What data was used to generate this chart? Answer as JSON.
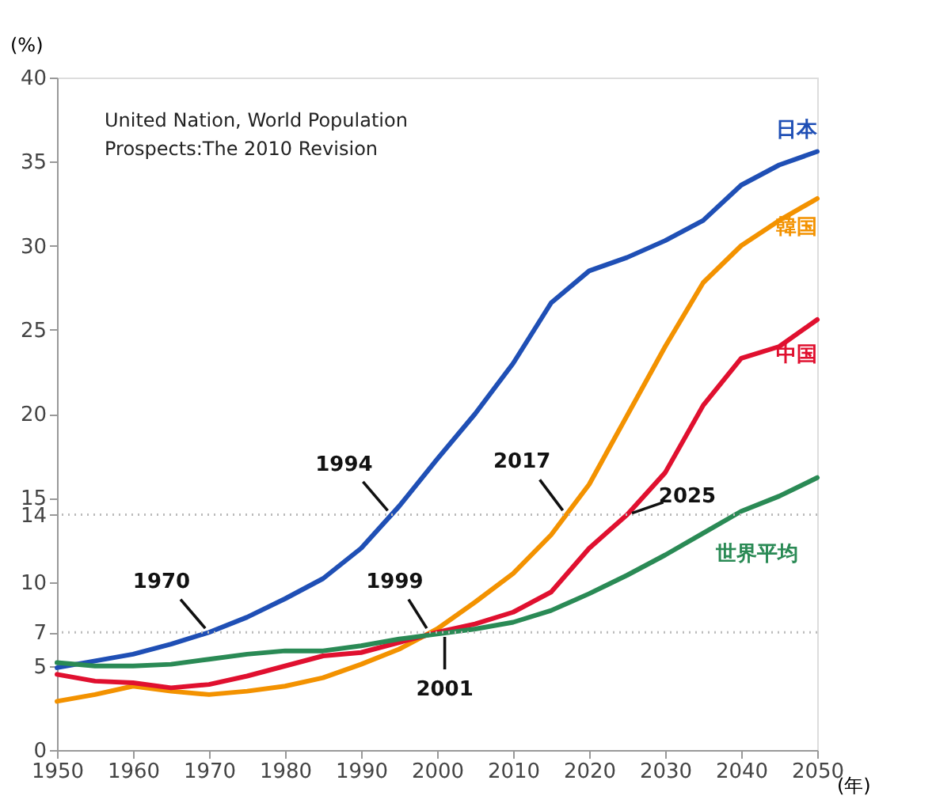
{
  "chart_data": {
    "type": "line",
    "xlabel": "(年)",
    "ylabel": "(%)",
    "x": [
      1950,
      1955,
      1960,
      1965,
      1970,
      1975,
      1980,
      1985,
      1990,
      1995,
      2000,
      2005,
      2010,
      2015,
      2020,
      2025,
      2030,
      2035,
      2040,
      2045,
      2050
    ],
    "series": [
      {
        "name": "日本",
        "color": "#1f4fb5",
        "values": [
          4.9,
          5.3,
          5.7,
          6.3,
          7.0,
          7.9,
          9.0,
          10.2,
          12.0,
          14.5,
          17.3,
          20.0,
          23.0,
          26.6,
          28.5,
          29.3,
          30.3,
          31.5,
          33.6,
          34.8,
          35.6
        ]
      },
      {
        "name": "韓国",
        "color": "#f39200",
        "values": [
          2.9,
          3.3,
          3.8,
          3.5,
          3.3,
          3.5,
          3.8,
          4.3,
          5.1,
          6.0,
          7.2,
          8.8,
          10.5,
          12.8,
          15.8,
          19.9,
          24.0,
          27.8,
          30.0,
          31.5,
          32.8
        ]
      },
      {
        "name": "中国",
        "color": "#e0102f",
        "values": [
          4.5,
          4.1,
          4.0,
          3.7,
          3.9,
          4.4,
          5.0,
          5.6,
          5.8,
          6.4,
          7.0,
          7.5,
          8.2,
          9.4,
          12.0,
          14.0,
          16.5,
          20.5,
          23.3,
          24.0,
          25.6
        ]
      },
      {
        "name": "世界平均",
        "color": "#2a8a55",
        "values": [
          5.2,
          5.0,
          5.0,
          5.1,
          5.4,
          5.7,
          5.9,
          5.9,
          6.2,
          6.6,
          6.9,
          7.2,
          7.6,
          8.3,
          9.3,
          10.4,
          11.6,
          12.9,
          14.2,
          15.1,
          16.2
        ]
      }
    ],
    "xlim": [
      1950,
      2050
    ],
    "xticks": [
      1950,
      1960,
      1970,
      1980,
      1990,
      2000,
      2010,
      2020,
      2030,
      2040,
      2050
    ],
    "ylim": [
      0,
      40
    ],
    "yticks": [
      0,
      5,
      7,
      10,
      14,
      15,
      20,
      25,
      30,
      35,
      40
    ],
    "ref_lines": [
      {
        "axis": "y",
        "value": 7,
        "label": null,
        "line_style": "dotted",
        "color": "#bbbbbb"
      },
      {
        "axis": "y",
        "value": 14,
        "label": null,
        "line_style": "dotted",
        "color": "#bbbbbb"
      }
    ],
    "annotations": [
      "United Nation, World Population\nProspects:The 2010 Revision",
      {
        "text": "1970",
        "x": 1970,
        "y": 7.0
      },
      {
        "text": "1994",
        "x": 1994,
        "y": 14.0
      },
      {
        "text": "1999",
        "x": 1999,
        "y": 7.0
      },
      {
        "text": "2001",
        "x": 2001,
        "y": 7.0
      },
      {
        "text": "2017",
        "x": 2017,
        "y": 14.0
      },
      {
        "text": "2025",
        "x": 2025,
        "y": 14.0
      }
    ],
    "grid": false,
    "legend": false,
    "marker": "none",
    "line_style": "solid"
  }
}
